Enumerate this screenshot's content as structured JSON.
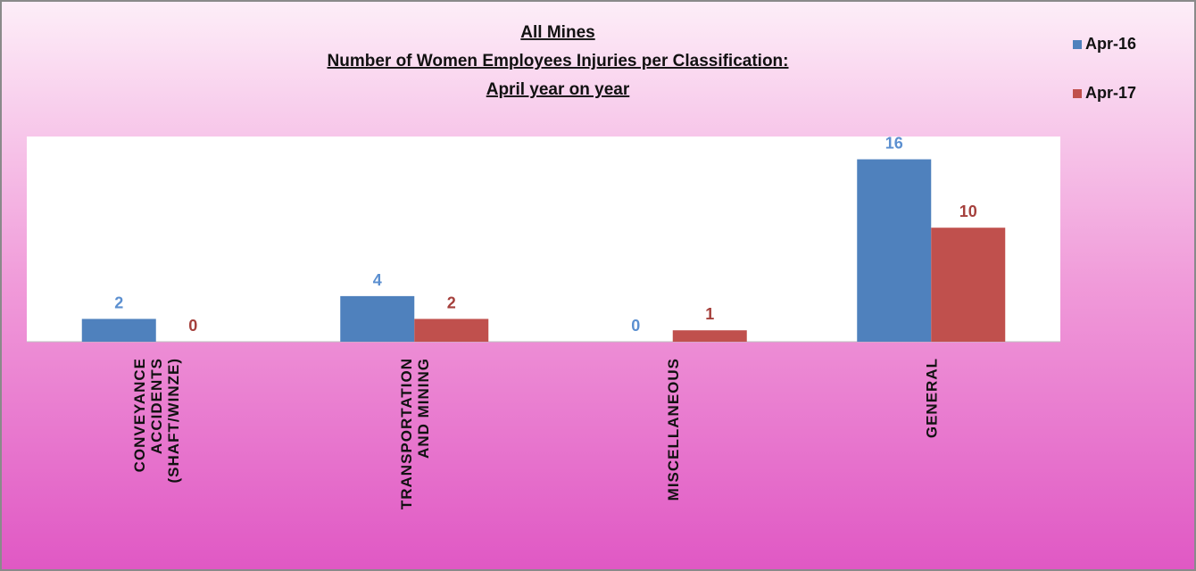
{
  "chart_data": {
    "type": "bar",
    "title": [
      "All Mines",
      "Number of Women Employees Injuries per Classification:",
      "April year on year"
    ],
    "categories": [
      "CONVEYANCE ACCIDENTS (SHAFT/WINZE)",
      "TRANSPORTATION AND MINING",
      "MISCELLANEOUS",
      "GENERAL"
    ],
    "series": [
      {
        "name": "Apr-16",
        "color": "#4f81bd",
        "label_color": "#5b8fd0",
        "values": [
          2,
          4,
          0,
          16
        ]
      },
      {
        "name": "Apr-17",
        "color": "#c0504d",
        "label_color": "#a5403c",
        "values": [
          0,
          2,
          1,
          10
        ]
      }
    ],
    "ylim": [
      0,
      18
    ],
    "legend": "top-right",
    "grid": false
  }
}
